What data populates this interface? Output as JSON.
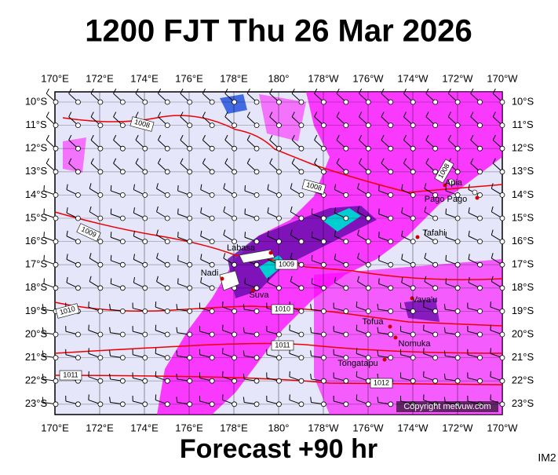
{
  "header": {
    "title": "1200 FJT Thu 26 Mar 2026"
  },
  "footer": {
    "forecast": "Forecast +90 hr",
    "image_id": "IM2",
    "copyright": "Copyright metvuw.com"
  },
  "axes": {
    "longitudes": [
      "170°E",
      "172°E",
      "174°E",
      "176°E",
      "178°E",
      "180°",
      "178°W",
      "176°W",
      "174°W",
      "172°W",
      "170°W"
    ],
    "latitudes": [
      "10°S",
      "11°S",
      "12°S",
      "13°S",
      "14°S",
      "15°S",
      "16°S",
      "17°S",
      "18°S",
      "19°S",
      "20°S",
      "21°S",
      "22°S",
      "23°S"
    ]
  },
  "places": [
    "Labasa",
    "Nadi",
    "Suva",
    "Apia",
    "Pago Pago",
    "Tafahi",
    "Vava'u",
    "Tofua",
    "Nomuka",
    "Tongatapu"
  ],
  "isobar_labels": [
    "1008",
    "1008",
    "1008",
    "1009",
    "1009",
    "1010",
    "1010",
    "1011",
    "1011",
    "1012"
  ]
}
